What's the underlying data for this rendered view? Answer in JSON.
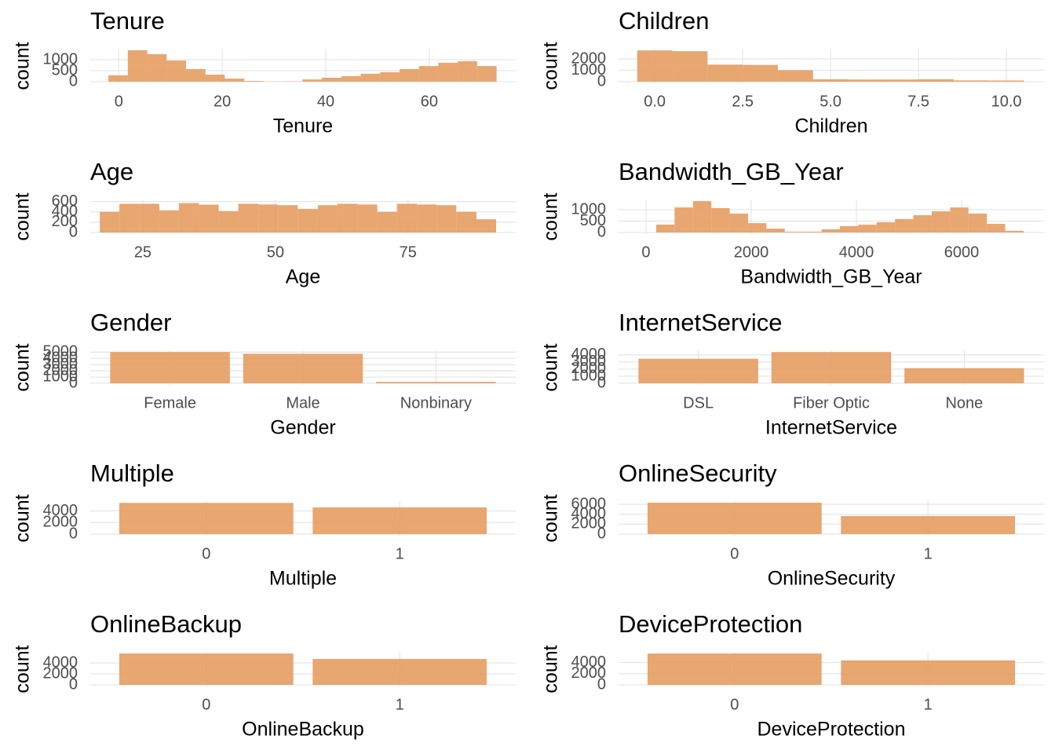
{
  "chart_data": [
    {
      "type": "histogram",
      "title": "Tenure",
      "xlabel": "Tenure",
      "ylabel": "count",
      "color": "#e69c62",
      "bins": [
        -2,
        1.75,
        5.5,
        9.25,
        13,
        16.75,
        20.5,
        24.25,
        28,
        31.75,
        35.5,
        39.25,
        43,
        46.75,
        50.5,
        54.25,
        58,
        61.75,
        65.5,
        69.25,
        73
      ],
      "values": [
        290,
        1430,
        1250,
        960,
        570,
        320,
        140,
        30,
        5,
        10,
        100,
        180,
        250,
        360,
        430,
        570,
        710,
        860,
        930,
        710
      ],
      "xlim": [
        -5.5,
        76.7
      ],
      "xticks": [
        0,
        20,
        40,
        60
      ],
      "ylim": [
        -72,
        1500
      ],
      "yticks": [
        0,
        500,
        1000
      ],
      "grid": true
    },
    {
      "type": "histogram",
      "title": "Children",
      "xlabel": "Children",
      "ylabel": "count",
      "color": "#e69c62",
      "bins": [
        -0.5,
        0.5,
        1.5,
        2.5,
        3.5,
        4.5,
        5.5,
        6.5,
        7.5,
        8.5,
        9.5,
        10.5
      ],
      "values": [
        2750,
        2680,
        1500,
        1470,
        1010,
        210,
        190,
        190,
        210,
        110,
        100
      ],
      "xlim": [
        -1.03,
        11.07
      ],
      "xticks": [
        {
          "value": 0,
          "label": "0.0"
        },
        {
          "value": 2.5,
          "label": "2.5"
        },
        {
          "value": 5,
          "label": "5.0"
        },
        {
          "value": 7.5,
          "label": "7.5"
        },
        {
          "value": 10,
          "label": "10.0"
        }
      ],
      "ylim": [
        -140,
        2900
      ],
      "yticks": [
        0,
        1000,
        2000
      ],
      "grid": true
    },
    {
      "type": "histogram",
      "title": "Age",
      "xlabel": "Age",
      "ylabel": "count",
      "color": "#e69c62",
      "bins": [
        16.9,
        20.6,
        24.3,
        28.1,
        31.8,
        35.6,
        39.3,
        43.0,
        46.8,
        50.5,
        54.2,
        58.0,
        61.7,
        65.5,
        69.2,
        72.9,
        76.7,
        80.4,
        84.1,
        87.9,
        91.6
      ],
      "values": [
        400,
        557,
        557,
        430,
        570,
        540,
        415,
        557,
        543,
        530,
        457,
        530,
        557,
        543,
        400,
        557,
        543,
        530,
        400,
        257
      ],
      "xlim": [
        15.1,
        95.3
      ],
      "xticks": [
        25,
        50,
        75
      ],
      "ylim": [
        -30,
        640
      ],
      "yticks": [
        0,
        200,
        400,
        600
      ],
      "grid": true
    },
    {
      "type": "histogram",
      "title": "Bandwidth_GB_Year",
      "xlabel": "Bandwidth_GB_Year",
      "ylabel": "count",
      "color": "#e69c62",
      "bins": [
        194,
        543,
        892,
        1242,
        1591,
        1940,
        2289,
        2638,
        2988,
        3337,
        3686,
        4035,
        4384,
        4734,
        5083,
        5432,
        5781,
        6130,
        6480,
        6829,
        7178
      ],
      "values": [
        345,
        1100,
        1380,
        1070,
        830,
        410,
        170,
        35,
        35,
        140,
        280,
        340,
        450,
        590,
        760,
        930,
        1100,
        830,
        380,
        70
      ],
      "xlim": [
        -522,
        7567
      ],
      "xticks": [
        0,
        2000,
        4000,
        6000
      ],
      "ylim": [
        -70,
        1450
      ],
      "yticks": [
        0,
        500,
        1000
      ],
      "grid": true
    },
    {
      "type": "bar",
      "title": "Gender",
      "xlabel": "Gender",
      "ylabel": "count",
      "color": "#e69c62",
      "categories": [
        "Female",
        "Male",
        "Nonbinary"
      ],
      "values": [
        5025,
        4744,
        231
      ],
      "ylim": [
        -250,
        5300
      ],
      "yticks": [
        0,
        1000,
        2000,
        3000,
        4000,
        5000
      ],
      "grid": true
    },
    {
      "type": "bar",
      "title": "InternetService",
      "xlabel": "InternetService",
      "ylabel": "count",
      "color": "#e69c62",
      "categories": [
        "DSL",
        "Fiber Optic",
        "None"
      ],
      "values": [
        3460,
        4410,
        2130
      ],
      "ylim": [
        -220,
        4650
      ],
      "yticks": [
        0,
        1000,
        2000,
        3000,
        4000
      ],
      "grid": true
    },
    {
      "type": "bar",
      "title": "Multiple",
      "xlabel": "Multiple",
      "ylabel": "count",
      "color": "#e69c62",
      "categories": [
        "0",
        "1"
      ],
      "values": [
        5390,
        4610
      ],
      "ylim": [
        -270,
        5700
      ],
      "yticks": [
        0,
        2000,
        4000
      ],
      "grid": true
    },
    {
      "type": "bar",
      "title": "OnlineSecurity",
      "xlabel": "OnlineSecurity",
      "ylabel": "count",
      "color": "#e69c62",
      "categories": [
        "0",
        "1"
      ],
      "values": [
        6320,
        3630
      ],
      "ylim": [
        -320,
        6650
      ],
      "yticks": [
        0,
        2000,
        4000,
        6000
      ],
      "grid": true
    },
    {
      "type": "bar",
      "title": "OnlineBackup",
      "xlabel": "OnlineBackup",
      "ylabel": "count",
      "color": "#e69c62",
      "categories": [
        "0",
        "1"
      ],
      "values": [
        5710,
        4710
      ],
      "ylim": [
        -290,
        6000
      ],
      "yticks": [
        0,
        2000,
        4000
      ],
      "grid": true
    },
    {
      "type": "bar",
      "title": "DeviceProtection",
      "xlabel": "DeviceProtection",
      "ylabel": "count",
      "color": "#e69c62",
      "categories": [
        "0",
        "1"
      ],
      "values": [
        5610,
        4390
      ],
      "ylim": [
        -280,
        5900
      ],
      "yticks": [
        0,
        2000,
        4000
      ],
      "grid": true
    }
  ]
}
